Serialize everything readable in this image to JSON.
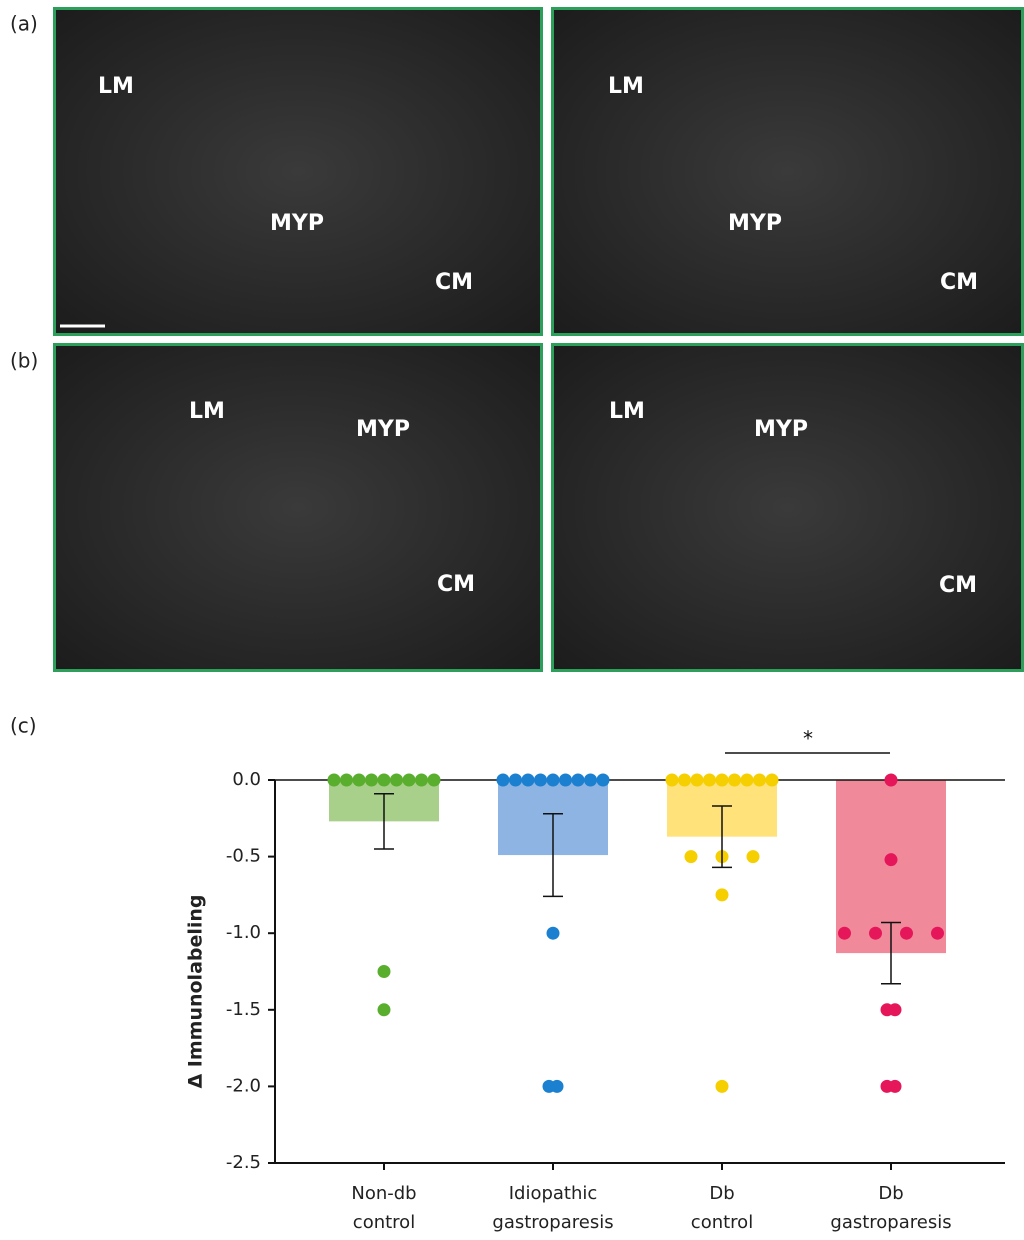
{
  "panels": [
    {
      "label": "(a)",
      "images": [
        {
          "labels": [
            "LM",
            "MYP",
            "CM"
          ]
        },
        {
          "labels": [
            "LM",
            "MYP",
            "CM"
          ]
        }
      ]
    },
    {
      "label": "(b)",
      "images": [
        {
          "labels": [
            "LM",
            "MYP",
            "CM"
          ]
        },
        {
          "labels": [
            "LM",
            "MYP",
            "CM"
          ]
        }
      ]
    },
    {
      "label": "(c)"
    }
  ],
  "chart_data": {
    "type": "bar",
    "ylabel": "Δ Immunolabeling",
    "categories": [
      [
        "Non-db",
        "control"
      ],
      [
        "Idiopathic",
        "gastroparesis"
      ],
      [
        "Db",
        "control"
      ],
      [
        "Db",
        "gastroparesis"
      ]
    ],
    "values": [
      -0.27,
      -0.49,
      -0.37,
      -1.13
    ],
    "errors": [
      0.18,
      0.27,
      0.2,
      0.2
    ],
    "bar_colors": [
      "#a8d08a",
      "#8db4e2",
      "#ffe27a",
      "#f08a9a"
    ],
    "point_colors": [
      "#5aae2e",
      "#1b80d0",
      "#f5cf00",
      "#e5175a"
    ],
    "points": [
      [
        0,
        0,
        0,
        0,
        0,
        0,
        0,
        0,
        0,
        -1.25,
        -1.5
      ],
      [
        0,
        0,
        0,
        0,
        0,
        0,
        0,
        0,
        0,
        -1,
        -2,
        -2
      ],
      [
        0,
        0,
        0,
        0,
        0,
        0,
        0,
        0,
        0,
        -0.5,
        -0.5,
        -0.5,
        -0.75,
        -2
      ],
      [
        0,
        -0.52,
        -1,
        -1,
        -1,
        -1,
        -1.5,
        -1.5,
        -2,
        -2
      ]
    ],
    "ylim": [
      -2.5,
      0
    ],
    "yticks": [
      {
        "value": 0,
        "label": "0.0"
      },
      -0.5,
      {
        "value": -1,
        "label": "-1.0"
      },
      -1.5,
      {
        "value": -2,
        "label": "-2.0"
      },
      -2.5
    ],
    "annotations": [
      {
        "text": "*"
      }
    ]
  }
}
